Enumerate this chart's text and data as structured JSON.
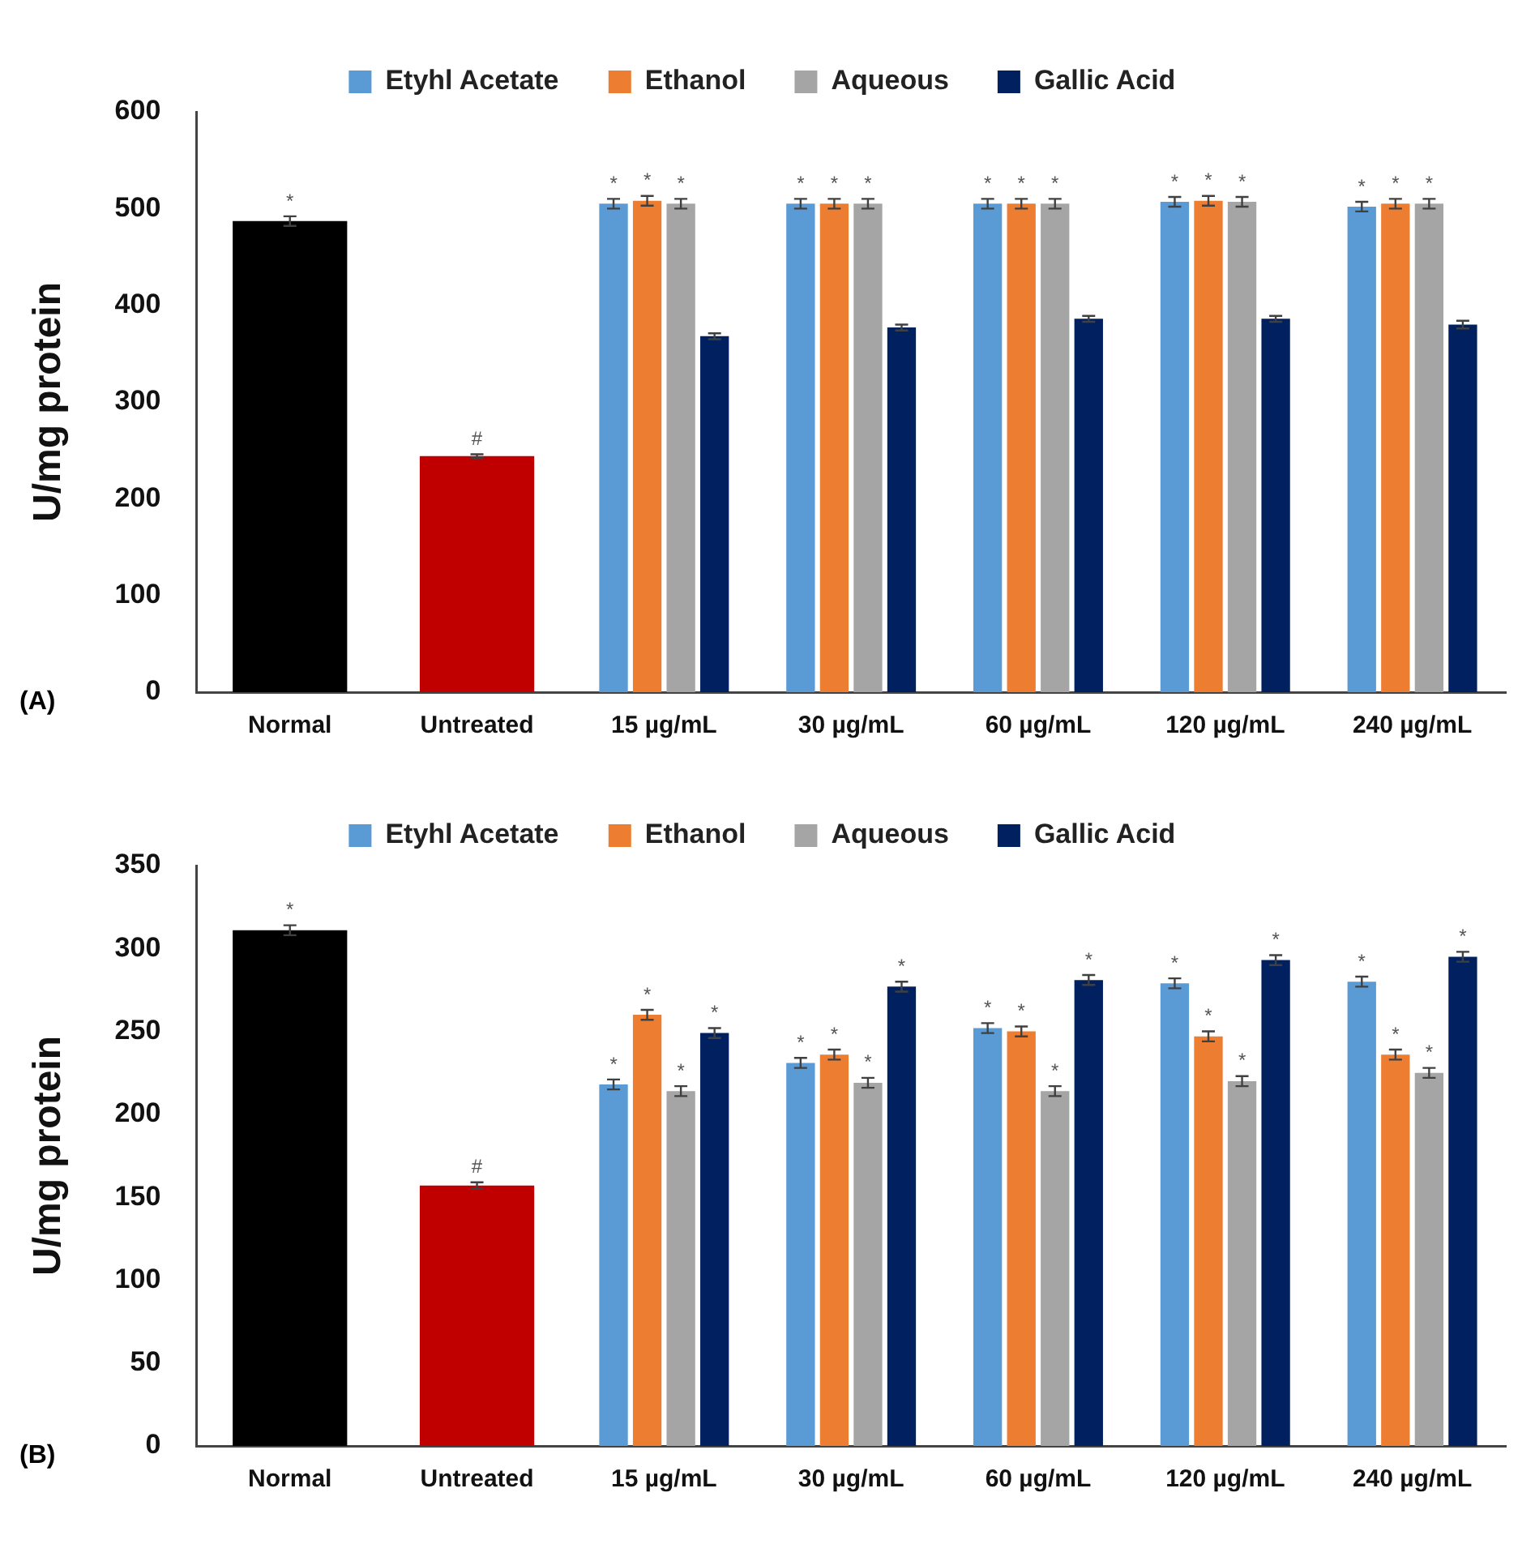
{
  "chart_data": [
    {
      "type": "bar",
      "ylabel": "U/mg protein",
      "categories": [
        "Normal",
        "Untreated",
        "15 µg/mL",
        "30 µg/mL",
        "60 µg/mL",
        "120 µg/mL",
        "240 µg/mL"
      ],
      "ylim": [
        0,
        600
      ],
      "yticks": [
        0,
        100,
        200,
        300,
        400,
        500,
        600
      ],
      "grid": false,
      "legend": "top",
      "annotations": [
        "(A)"
      ],
      "series": [
        {
          "colors": [
            "#000000",
            "#c00000",
            null,
            null,
            null,
            null,
            null
          ],
          "values": [
            487,
            244,
            null,
            null,
            null,
            null,
            null
          ],
          "errors": [
            5,
            2,
            null,
            null,
            null,
            null,
            null
          ],
          "value_labels": [
            "*",
            "#",
            null,
            null,
            null,
            null,
            null
          ]
        },
        {
          "name": "Etyhl Acetate",
          "color": "#5b9bd5",
          "values": [
            null,
            null,
            505,
            505,
            505,
            507,
            502
          ],
          "errors": [
            null,
            null,
            5,
            5,
            5,
            5,
            5
          ],
          "value_labels": [
            null,
            null,
            "*",
            "*",
            "*",
            "*",
            "*"
          ]
        },
        {
          "name": "Ethanol",
          "color": "#ed7d31",
          "values": [
            null,
            null,
            508,
            505,
            505,
            508,
            505
          ],
          "errors": [
            null,
            null,
            5,
            5,
            5,
            5,
            5
          ],
          "value_labels": [
            null,
            null,
            "*",
            "*",
            "*",
            "*",
            "*"
          ]
        },
        {
          "name": "Aqueous",
          "color": "#a5a5a5",
          "values": [
            null,
            null,
            505,
            505,
            505,
            507,
            505
          ],
          "errors": [
            null,
            null,
            5,
            5,
            5,
            5,
            5
          ],
          "value_labels": [
            null,
            null,
            "*",
            "*",
            "*",
            "*",
            "*"
          ]
        },
        {
          "name": "Gallic Acid",
          "color": "#002060",
          "values": [
            null,
            null,
            368,
            377,
            386,
            386,
            380
          ],
          "errors": [
            null,
            null,
            3,
            3,
            3,
            3,
            4
          ]
        }
      ]
    },
    {
      "type": "bar",
      "ylabel": "U/mg protein",
      "categories": [
        "Normal",
        "Untreated",
        "15 µg/mL",
        "30 µg/mL",
        "60 µg/mL",
        "120 µg/mL",
        "240 µg/mL"
      ],
      "ylim": [
        0,
        350
      ],
      "yticks": [
        0,
        50,
        100,
        150,
        200,
        250,
        300,
        350
      ],
      "grid": false,
      "legend": "top",
      "annotations": [
        "(B)"
      ],
      "series": [
        {
          "colors": [
            "#000000",
            "#c00000",
            null,
            null,
            null,
            null,
            null
          ],
          "values": [
            311,
            157,
            null,
            null,
            null,
            null,
            null
          ],
          "errors": [
            3,
            2,
            null,
            null,
            null,
            null,
            null
          ],
          "value_labels": [
            "*",
            "#",
            null,
            null,
            null,
            null,
            null
          ]
        },
        {
          "name": "Etyhl Acetate",
          "color": "#5b9bd5",
          "values": [
            null,
            null,
            218,
            231,
            252,
            279,
            280
          ],
          "errors": [
            null,
            null,
            3,
            3,
            3,
            3,
            3
          ],
          "value_labels": [
            null,
            null,
            "*",
            "*",
            "*",
            "*",
            "*"
          ]
        },
        {
          "name": "Ethanol",
          "color": "#ed7d31",
          "values": [
            null,
            null,
            260,
            236,
            250,
            247,
            236
          ],
          "errors": [
            null,
            null,
            3,
            3,
            3,
            3,
            3
          ],
          "value_labels": [
            null,
            null,
            "*",
            "*",
            "*",
            "*",
            "*"
          ]
        },
        {
          "name": "Aqueous",
          "color": "#a5a5a5",
          "values": [
            null,
            null,
            214,
            219,
            214,
            220,
            225
          ],
          "errors": [
            null,
            null,
            3,
            3,
            3,
            3,
            3
          ],
          "value_labels": [
            null,
            null,
            "*",
            "*",
            "*",
            "*",
            "*"
          ]
        },
        {
          "name": "Gallic Acid",
          "color": "#002060",
          "values": [
            null,
            null,
            249,
            277,
            281,
            293,
            295
          ],
          "errors": [
            null,
            null,
            3,
            3,
            3,
            3,
            3
          ],
          "value_labels": [
            null,
            null,
            "*",
            "*",
            "*",
            "*",
            "*"
          ]
        }
      ]
    }
  ]
}
